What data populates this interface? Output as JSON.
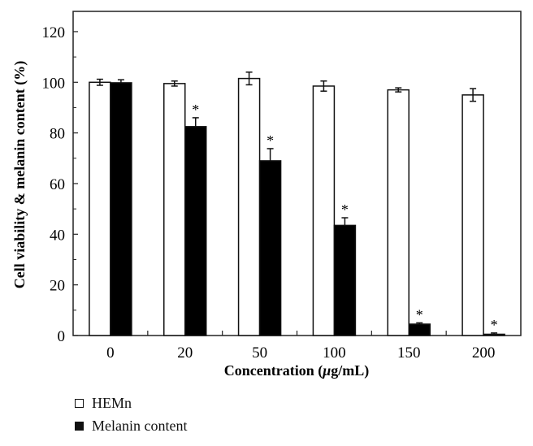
{
  "chart_data": {
    "type": "bar",
    "title": "",
    "xlabel": "Concentration (μg/mL)",
    "ylabel": "Cell viability & melanin content (%)",
    "categories": [
      "0",
      "20",
      "50",
      "100",
      "150",
      "200"
    ],
    "ylim": [
      0,
      128
    ],
    "yticks": [
      0,
      20,
      40,
      60,
      80,
      100,
      120
    ],
    "grid": false,
    "legend_position": "below-left",
    "series": [
      {
        "name": "HEMn",
        "color": "#ffffff",
        "values": [
          100,
          99.5,
          101.5,
          98.5,
          97,
          95
        ],
        "errors": [
          1.2,
          1.0,
          2.5,
          2.0,
          0.8,
          2.5
        ],
        "significant": [
          false,
          false,
          false,
          false,
          false,
          false
        ]
      },
      {
        "name": "Melanin content",
        "color": "#000000",
        "values": [
          99.8,
          82.5,
          69,
          43.5,
          4.5,
          0.5
        ],
        "errors": [
          1.2,
          3.5,
          4.8,
          3.0,
          0.5,
          0.5
        ],
        "significant": [
          false,
          true,
          true,
          true,
          true,
          true
        ]
      }
    ],
    "annotation_symbol": "*"
  },
  "legend": {
    "items": [
      {
        "label": "HEMn"
      },
      {
        "label": "Melanin content"
      }
    ]
  }
}
